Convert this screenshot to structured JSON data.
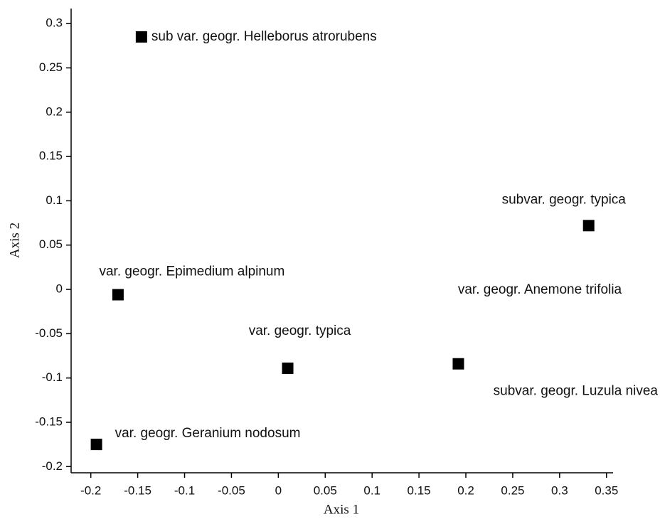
{
  "chart_data": {
    "type": "scatter",
    "x_label": "Axis 1",
    "y_label": "Axis 2",
    "labels": [
      "sub  var. geogr. Helleborus atrorubens",
      "subvar. geogr. typica",
      "var. geogr. Epimedium alpinum",
      "var. geogr. typica",
      "subvar. geogr. Luzula nivea",
      "var. geogr. Geranium nodosum"
    ],
    "x": [
      -0.146,
      0.331,
      -0.171,
      0.01,
      0.192,
      -0.194
    ],
    "values": [
      0.285,
      0.072,
      -0.006,
      -0.089,
      -0.084,
      -0.175
    ],
    "annotations": [
      "var. geogr. Anemone trifolia"
    ],
    "color": "#000000",
    "xlim": [
      -0.221,
      0.357
    ],
    "xticks": [
      -0.2,
      -0.15,
      -0.1,
      -0.05,
      0,
      0.05,
      0.1,
      0.15,
      0.2,
      0.25,
      0.3,
      0.35
    ],
    "ylim": [
      -0.207,
      0.317
    ],
    "yticks": [
      -0.2,
      -0.15,
      -0.1,
      -0.05,
      0,
      0.05,
      0.1,
      0.15,
      0.2,
      0.25,
      0.3
    ]
  }
}
